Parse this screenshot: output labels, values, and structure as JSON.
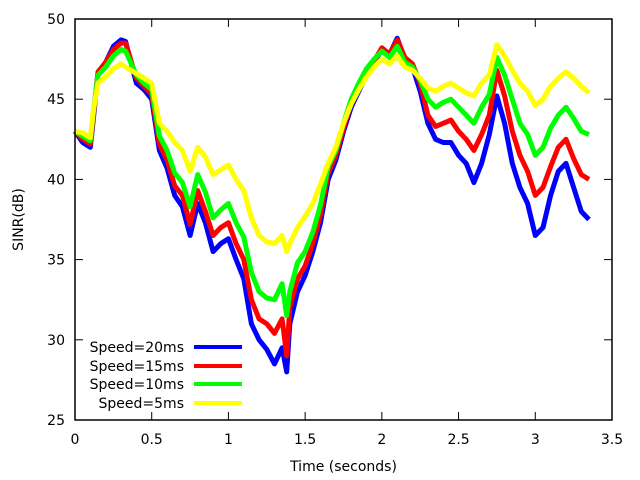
{
  "chart_data": {
    "type": "line",
    "xlabel": "Time (seconds)",
    "ylabel": "SINR(dB)",
    "xlim": [
      0,
      3.5
    ],
    "ylim": [
      25,
      50
    ],
    "xticks": [
      0,
      0.5,
      1,
      1.5,
      2,
      2.5,
      3,
      3.5
    ],
    "xtick_labels": [
      "0",
      "0.5",
      "1",
      "1.5",
      "2",
      "2.5",
      "3",
      "3.5"
    ],
    "yticks": [
      25,
      30,
      35,
      40,
      45,
      50
    ],
    "ytick_labels": [
      "25",
      "30",
      "35",
      "40",
      "45",
      "50"
    ],
    "grid": false,
    "legend_position": "bottom-left",
    "x": [
      0,
      0.05,
      0.1,
      0.12,
      0.15,
      0.2,
      0.25,
      0.3,
      0.33,
      0.4,
      0.45,
      0.5,
      0.55,
      0.6,
      0.65,
      0.7,
      0.75,
      0.8,
      0.85,
      0.9,
      0.95,
      1.0,
      1.05,
      1.1,
      1.15,
      1.2,
      1.25,
      1.3,
      1.35,
      1.38,
      1.4,
      1.45,
      1.5,
      1.55,
      1.6,
      1.65,
      1.7,
      1.75,
      1.8,
      1.85,
      1.9,
      1.95,
      2.0,
      2.05,
      2.1,
      2.15,
      2.2,
      2.25,
      2.3,
      2.35,
      2.4,
      2.45,
      2.5,
      2.55,
      2.6,
      2.65,
      2.7,
      2.75,
      2.8,
      2.85,
      2.9,
      2.95,
      3.0,
      3.05,
      3.1,
      3.15,
      3.2,
      3.25,
      3.3,
      3.35
    ],
    "series": [
      {
        "name": "Speed=20ms",
        "color": "#0000ff",
        "values": [
          43.0,
          42.3,
          42.0,
          43.8,
          46.6,
          47.3,
          48.3,
          48.7,
          48.6,
          46.0,
          45.6,
          45.0,
          41.8,
          40.7,
          39.0,
          38.3,
          36.5,
          38.5,
          37.3,
          35.5,
          36.0,
          36.3,
          35.0,
          33.8,
          31.0,
          30.0,
          29.4,
          28.5,
          29.5,
          28.0,
          31.0,
          33.0,
          34.0,
          35.5,
          37.3,
          40.0,
          41.2,
          43.0,
          44.5,
          45.5,
          46.5,
          47.2,
          48.2,
          47.8,
          48.8,
          47.5,
          47.0,
          45.5,
          43.5,
          42.5,
          42.3,
          42.3,
          41.5,
          41.0,
          39.8,
          41.0,
          42.8,
          45.2,
          43.5,
          41.0,
          39.5,
          38.5,
          36.5,
          37.0,
          39.0,
          40.5,
          41.0,
          39.5,
          38.0,
          37.5
        ]
      },
      {
        "name": "Speed=15ms",
        "color": "#ff0000",
        "values": [
          43.0,
          42.5,
          42.2,
          44.0,
          46.7,
          47.3,
          48.1,
          48.5,
          48.5,
          46.3,
          45.8,
          45.3,
          42.2,
          41.2,
          39.6,
          39.0,
          37.2,
          39.3,
          38.0,
          36.5,
          37.0,
          37.3,
          36.0,
          35.0,
          32.5,
          31.3,
          31.0,
          30.4,
          31.3,
          29.0,
          32.0,
          33.8,
          34.6,
          36.0,
          37.8,
          40.4,
          41.5,
          43.2,
          44.8,
          45.8,
          46.7,
          47.4,
          48.2,
          47.8,
          48.7,
          47.6,
          47.2,
          46.0,
          44.0,
          43.3,
          43.5,
          43.7,
          43.0,
          42.5,
          41.8,
          42.8,
          44.0,
          46.8,
          45.2,
          43.0,
          41.5,
          40.5,
          39.0,
          39.5,
          40.8,
          42.0,
          42.5,
          41.3,
          40.3,
          40.0
        ]
      },
      {
        "name": "Speed=10ms",
        "color": "#00ff00",
        "values": [
          43.0,
          42.7,
          42.4,
          44.2,
          46.5,
          47.0,
          47.7,
          48.1,
          48.0,
          46.5,
          46.0,
          45.6,
          42.7,
          41.8,
          40.4,
          39.8,
          38.3,
          40.3,
          39.2,
          37.6,
          38.1,
          38.5,
          37.3,
          36.4,
          34.2,
          33.0,
          32.6,
          32.5,
          33.5,
          31.5,
          33.0,
          34.8,
          35.5,
          36.7,
          38.4,
          40.8,
          41.8,
          43.5,
          45.0,
          46.0,
          46.9,
          47.5,
          48.0,
          47.6,
          48.3,
          47.3,
          47.0,
          46.2,
          45.0,
          44.5,
          44.8,
          45.0,
          44.5,
          44.0,
          43.5,
          44.5,
          45.3,
          47.6,
          46.5,
          45.0,
          43.5,
          42.8,
          41.5,
          42.0,
          43.2,
          44.0,
          44.5,
          43.8,
          43.0,
          42.8
        ]
      },
      {
        "name": "Speed=5ms",
        "color": "#ffff00",
        "values": [
          43.0,
          42.9,
          42.6,
          44.3,
          46.0,
          46.4,
          46.9,
          47.2,
          47.0,
          46.6,
          46.3,
          46.0,
          43.5,
          43.0,
          42.3,
          41.8,
          40.5,
          42.0,
          41.4,
          40.3,
          40.6,
          40.9,
          40.0,
          39.3,
          37.6,
          36.5,
          36.1,
          36.0,
          36.5,
          35.5,
          36.0,
          37.0,
          37.7,
          38.5,
          39.7,
          41.0,
          42.0,
          43.5,
          44.7,
          45.6,
          46.4,
          47.0,
          47.5,
          47.2,
          47.7,
          47.0,
          46.8,
          46.3,
          45.7,
          45.5,
          45.8,
          46.0,
          45.7,
          45.4,
          45.2,
          46.0,
          46.5,
          48.4,
          47.7,
          46.8,
          46.0,
          45.5,
          44.6,
          45.0,
          45.8,
          46.3,
          46.7,
          46.3,
          45.8,
          45.4
        ]
      }
    ]
  }
}
